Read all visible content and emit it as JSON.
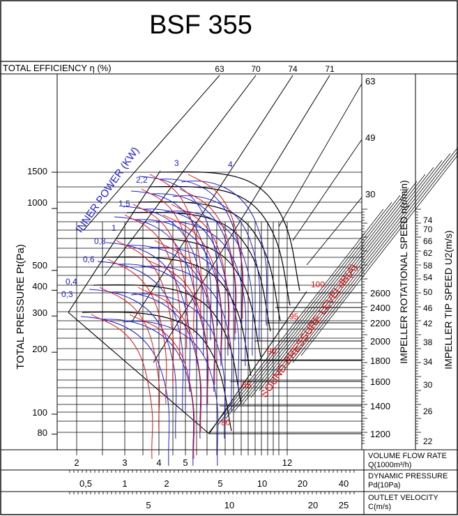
{
  "title": "BSF 355",
  "efficiency": {
    "label": "TOTAL EFFICIENCY η (%)",
    "values": [
      "63",
      "70",
      "74",
      "71"
    ]
  },
  "power_title": "INNER POWER (KW)",
  "power_labels": [
    "3",
    "4",
    "2,2",
    "1,5",
    "1",
    "0,8",
    "0,6",
    "0,4",
    "0,3"
  ],
  "sound_title": "SOUND PRESSURE LEVELdB(A)",
  "sound_labels": [
    "100",
    "95",
    "90",
    "85",
    "80"
  ],
  "speed_title": "IMPELLER ROTATIONAL SPEED n(r/min)",
  "speed_labels": [
    "2600",
    "2400",
    "2200",
    "2000",
    "1800",
    "1600",
    "1400",
    "1200"
  ],
  "tip_title": "IMPELLER TIP SPEED U2(m/s)",
  "tip_labels": [
    "74",
    "70",
    "66",
    "62",
    "58",
    "54",
    "50",
    "46",
    "42",
    "38",
    "34",
    "30",
    "26",
    "22"
  ],
  "pressure_axis": {
    "title": "TOTAL PRESSURE Pt(Pa)",
    "ticks": [
      "1500",
      "1000",
      "500",
      "400",
      "300",
      "200",
      "100",
      "80"
    ]
  },
  "angle_labels": [
    "63",
    "49",
    "30"
  ],
  "flow_axis": {
    "title": "VOLUME FLOW RATE",
    "unit": "Q(1000m³/h)",
    "ticks": [
      "2",
      "3",
      "4",
      "5",
      "12"
    ]
  },
  "dynamic_axis": {
    "title": "DYNAMIC PRESSURE",
    "unit": "Pd(10Pa)",
    "ticks": [
      "0,5",
      "1",
      "2",
      "5",
      "10",
      "20",
      "40"
    ]
  },
  "velocity_axis": {
    "title": "OUTLET VELOCITY",
    "unit": "C(m/s)",
    "ticks": [
      "5",
      "10",
      "20",
      "25"
    ]
  },
  "colors": {
    "ink": "#000000",
    "power_curves": "#1f1fc8",
    "sound_curves": "#e01010",
    "background": "#ffffff"
  },
  "chart_data": {
    "type": "line",
    "title": "BSF 355",
    "x_axis": "VOLUME FLOW RATE Q(1000m³/h)",
    "y_axis": "TOTAL PRESSURE Pt(Pa)",
    "y_scale": "log",
    "x_scale": "log",
    "ylim": [
      70,
      1600
    ],
    "xlim": [
      1.7,
      13
    ],
    "efficiency_percent": [
      63,
      70,
      74,
      71
    ],
    "rotational_speed_rpm": [
      1200,
      1400,
      1600,
      1800,
      2000,
      2200,
      2400,
      2600
    ],
    "tip_speed_ms": [
      22,
      26,
      30,
      34,
      38,
      42,
      46,
      50,
      54,
      58,
      62,
      66,
      70,
      74
    ],
    "inner_power_kw": [
      0.3,
      0.4,
      0.6,
      0.8,
      1,
      1.5,
      2.2,
      3,
      4
    ],
    "sound_pressure_dba": [
      80,
      85,
      90,
      95,
      100
    ],
    "grid": true
  }
}
